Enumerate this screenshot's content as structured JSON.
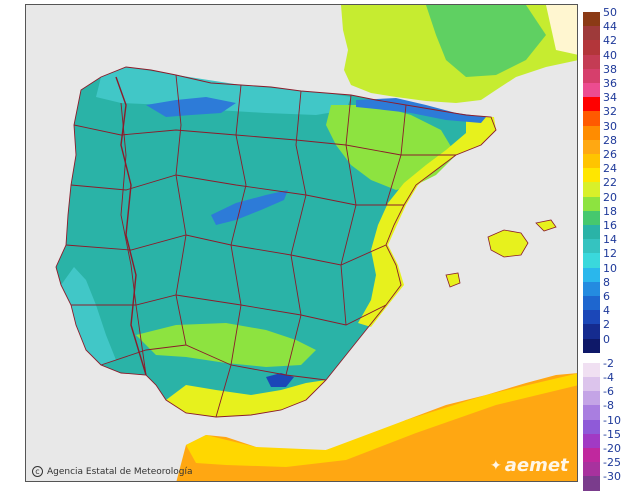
{
  "map": {
    "credit_text": "Agencia Estatal de Meteorología",
    "brand_text": "aemet",
    "sea_color": "#e8e8e8",
    "border_color": "#8b1c2b",
    "regions": [
      {
        "name": "iberian-interior",
        "color": "#2ab3a7"
      },
      {
        "name": "central-coast",
        "color": "#41c7c7"
      },
      {
        "name": "catalonia-valencia-coast",
        "color": "#e7f11d"
      },
      {
        "name": "ebro-valley",
        "color": "#8de340"
      },
      {
        "name": "africa-warm",
        "color": "#ffa712"
      },
      {
        "name": "mountains-cold",
        "color": "#2d7bd8"
      }
    ]
  },
  "legend": {
    "items": [
      {
        "label": "50",
        "color": "#8b3a15"
      },
      {
        "label": "44",
        "color": "#9e3a3a"
      },
      {
        "label": "42",
        "color": "#b3363a"
      },
      {
        "label": "40",
        "color": "#c43c54"
      },
      {
        "label": "38",
        "color": "#d63f6c"
      },
      {
        "label": "36",
        "color": "#ec4c90"
      },
      {
        "label": "34",
        "color": "#ff0000"
      },
      {
        "label": "32",
        "color": "#ff5a00"
      },
      {
        "label": "30",
        "color": "#ff8c00"
      },
      {
        "label": "28",
        "color": "#ffa812"
      },
      {
        "label": "26",
        "color": "#ffc400"
      },
      {
        "label": "24",
        "color": "#ffe600"
      },
      {
        "label": "22",
        "color": "#d8f02a"
      },
      {
        "label": "20",
        "color": "#8de340"
      },
      {
        "label": "18",
        "color": "#46c86e"
      },
      {
        "label": "16",
        "color": "#2ab3a7"
      },
      {
        "label": "14",
        "color": "#35c3c0"
      },
      {
        "label": "12",
        "color": "#3ad8dc"
      },
      {
        "label": "10",
        "color": "#2ab7ec"
      },
      {
        "label": "8",
        "color": "#248be0"
      },
      {
        "label": "6",
        "color": "#1e66cf"
      },
      {
        "label": "4",
        "color": "#1b47b8"
      },
      {
        "label": "2",
        "color": "#152b8f"
      },
      {
        "label": "0",
        "color": "#0e1868"
      },
      {
        "label": "-2",
        "color": "#f0e0f2"
      },
      {
        "label": "-4",
        "color": "#dcc4ec"
      },
      {
        "label": "-6",
        "color": "#c4a4e6"
      },
      {
        "label": "-8",
        "color": "#a97ee0"
      },
      {
        "label": "-10",
        "color": "#8f5ad8"
      },
      {
        "label": "-15",
        "color": "#a13ac4"
      },
      {
        "label": "-20",
        "color": "#c0289e"
      },
      {
        "label": "-25",
        "color": "#a8329e"
      },
      {
        "label": "-30",
        "color": "#7a3c8c"
      }
    ]
  }
}
